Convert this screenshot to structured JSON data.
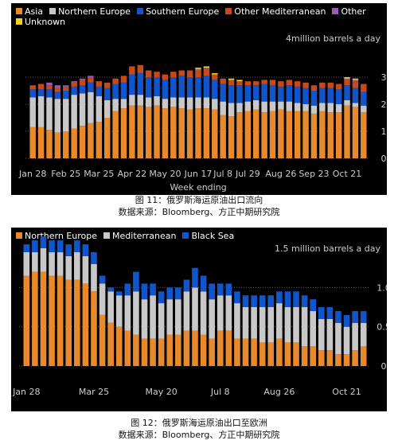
{
  "captions": [
    {
      "figure": "图 11：俄罗斯海运原油出口流向",
      "source": "数据来源：Bloomberg、方正中期研究院"
    },
    {
      "figure": "图 12：俄罗斯海运原油出口至欧洲",
      "source": "数据来源：Bloomberg、方正中期研究院"
    }
  ],
  "chart_data": [
    {
      "type": "bar",
      "stacked": true,
      "title": "",
      "unit_label": "4million barrels a day",
      "xlabel": "Week ending",
      "ylabel": "",
      "ylim": [
        0,
        4
      ],
      "yticks": [
        0,
        1,
        2,
        3
      ],
      "grid": true,
      "legend_position": "top-left",
      "xtick_labels": [
        "Jan 28",
        "Feb 25",
        "Mar 25",
        "Apr 22",
        "May 20",
        "Jun 17",
        "Jul 8",
        "Jul 29",
        "Aug 26",
        "Sep 23",
        "Oct 21"
      ],
      "xtick_indices": [
        0,
        4,
        8,
        12,
        16,
        20,
        23,
        26,
        30,
        34,
        38
      ],
      "series": [
        {
          "name": "Asia",
          "color": "#E8892B",
          "values": [
            1.15,
            1.15,
            1.05,
            0.95,
            1.0,
            1.1,
            1.2,
            1.3,
            1.35,
            1.5,
            1.75,
            1.85,
            1.95,
            1.95,
            1.9,
            1.95,
            1.85,
            1.9,
            1.85,
            1.8,
            1.85,
            1.85,
            1.8,
            1.6,
            1.55,
            1.7,
            1.75,
            1.8,
            1.7,
            1.75,
            1.8,
            1.75,
            1.75,
            1.75,
            1.65,
            1.75,
            1.7,
            1.7,
            1.95,
            1.9,
            1.7
          ]
        },
        {
          "name": "Northern Europe",
          "color": "#C8C8C8",
          "values": [
            1.1,
            1.15,
            1.2,
            1.25,
            1.2,
            1.25,
            1.2,
            1.15,
            0.95,
            0.65,
            0.45,
            0.35,
            0.4,
            0.4,
            0.35,
            0.35,
            0.35,
            0.35,
            0.4,
            0.45,
            0.4,
            0.4,
            0.4,
            0.5,
            0.5,
            0.35,
            0.35,
            0.35,
            0.4,
            0.35,
            0.3,
            0.35,
            0.3,
            0.25,
            0.3,
            0.3,
            0.35,
            0.3,
            0.2,
            0.15,
            0.25
          ]
        },
        {
          "name": "Southern Europe",
          "color": "#1155CC",
          "values": [
            0.3,
            0.25,
            0.3,
            0.25,
            0.3,
            0.3,
            0.3,
            0.35,
            0.35,
            0.45,
            0.55,
            0.6,
            0.75,
            0.8,
            0.75,
            0.7,
            0.7,
            0.75,
            0.8,
            0.75,
            0.75,
            0.8,
            0.7,
            0.65,
            0.65,
            0.65,
            0.6,
            0.55,
            0.65,
            0.6,
            0.55,
            0.6,
            0.6,
            0.6,
            0.55,
            0.55,
            0.55,
            0.55,
            0.55,
            0.55,
            0.5
          ]
        },
        {
          "name": "Other Mediterranean",
          "color": "#C64A1A",
          "values": [
            0.15,
            0.2,
            0.15,
            0.15,
            0.15,
            0.15,
            0.2,
            0.2,
            0.2,
            0.2,
            0.2,
            0.25,
            0.3,
            0.3,
            0.25,
            0.2,
            0.2,
            0.2,
            0.2,
            0.25,
            0.25,
            0.25,
            0.2,
            0.2,
            0.2,
            0.15,
            0.15,
            0.15,
            0.15,
            0.2,
            0.2,
            0.2,
            0.2,
            0.2,
            0.2,
            0.2,
            0.2,
            0.2,
            0.2,
            0.25,
            0.3
          ]
        },
        {
          "name": "Other",
          "color": "#9B59B6",
          "values": [
            0.0,
            0.0,
            0.1,
            0.1,
            0.05,
            0.05,
            0.05,
            0.05,
            0.0,
            0.0,
            0.0,
            0.0,
            0.0,
            0.0,
            0.0,
            0.0,
            0.0,
            0.0,
            0.0,
            0.0,
            0.05,
            0.05,
            0.0,
            0.0,
            0.0,
            0.0,
            0.0,
            0.0,
            0.0,
            0.0,
            0.0,
            0.0,
            0.0,
            0.0,
            0.0,
            0.0,
            0.0,
            0.0,
            0.05,
            0.05,
            0.0
          ]
        },
        {
          "name": "Unknown",
          "color": "#F0D020",
          "values": [
            0.0,
            0.0,
            0.0,
            0.0,
            0.0,
            0.0,
            0.0,
            0.0,
            0.0,
            0.0,
            0.0,
            0.0,
            0.0,
            0.0,
            0.0,
            0.0,
            0.0,
            0.0,
            0.0,
            0.0,
            0.05,
            0.05,
            0.05,
            0.0,
            0.05,
            0.05,
            0.0,
            0.0,
            0.0,
            0.0,
            0.0,
            0.0,
            0.0,
            0.0,
            0.0,
            0.0,
            0.0,
            0.0,
            0.05,
            0.05,
            0.0
          ]
        }
      ]
    },
    {
      "type": "bar",
      "stacked": true,
      "title": "",
      "unit_label": "1.5 million barrels a day",
      "xlabel": "",
      "ylabel": "",
      "ylim": [
        0,
        1.5
      ],
      "yticks": [
        0,
        0.5,
        1.0
      ],
      "ytick_labels": [
        "0",
        "0.5",
        "1.0"
      ],
      "grid": true,
      "legend_position": "top-left",
      "xtick_labels": [
        "Jan 28",
        "Mar 25",
        "May 20",
        "Jul 8",
        "Aug 26",
        "Oct 21"
      ],
      "xtick_indices": [
        0,
        8,
        16,
        23,
        30,
        38
      ],
      "series": [
        {
          "name": "Northern Europe",
          "color": "#E8892B",
          "values": [
            1.15,
            1.2,
            1.2,
            1.15,
            1.15,
            1.1,
            1.1,
            1.05,
            0.95,
            0.65,
            0.55,
            0.5,
            0.45,
            0.4,
            0.35,
            0.35,
            0.35,
            0.4,
            0.4,
            0.45,
            0.45,
            0.4,
            0.35,
            0.45,
            0.45,
            0.35,
            0.35,
            0.35,
            0.3,
            0.3,
            0.35,
            0.3,
            0.3,
            0.25,
            0.25,
            0.2,
            0.2,
            0.15,
            0.15,
            0.2,
            0.25
          ]
        },
        {
          "name": "Mediterranean",
          "color": "#C8C8C8",
          "values": [
            0.3,
            0.25,
            0.3,
            0.3,
            0.3,
            0.3,
            0.35,
            0.35,
            0.35,
            0.4,
            0.4,
            0.4,
            0.45,
            0.55,
            0.5,
            0.55,
            0.45,
            0.45,
            0.45,
            0.5,
            0.55,
            0.55,
            0.5,
            0.45,
            0.45,
            0.45,
            0.4,
            0.4,
            0.45,
            0.45,
            0.45,
            0.45,
            0.45,
            0.5,
            0.45,
            0.4,
            0.4,
            0.4,
            0.35,
            0.35,
            0.3
          ]
        },
        {
          "name": "Black Sea",
          "color": "#1155CC",
          "values": [
            0.1,
            0.15,
            0.15,
            0.15,
            0.15,
            0.15,
            0.15,
            0.15,
            0.15,
            0.1,
            0.05,
            0.05,
            0.15,
            0.25,
            0.2,
            0.15,
            0.15,
            0.15,
            0.15,
            0.15,
            0.25,
            0.2,
            0.2,
            0.15,
            0.15,
            0.15,
            0.15,
            0.15,
            0.15,
            0.15,
            0.15,
            0.2,
            0.2,
            0.15,
            0.15,
            0.15,
            0.15,
            0.15,
            0.15,
            0.15,
            0.15
          ]
        }
      ]
    }
  ]
}
